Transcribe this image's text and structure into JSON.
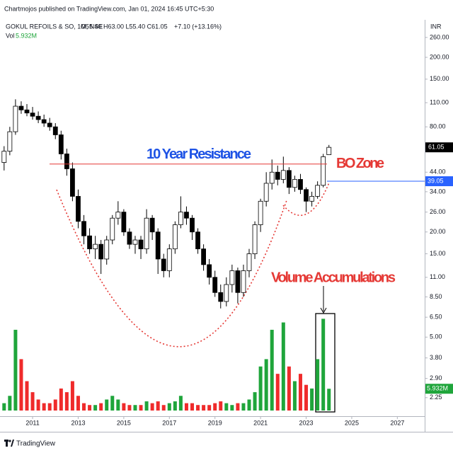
{
  "header": {
    "published": "Chartmojos published on TradingView.com, Jan 01, 2024 16:45 UTC+5:30",
    "symbol": "GOKUL REFOILS & SO, 1M, NSE",
    "ohlc": "O55.40 H63.00 L55.40 C61.05",
    "change": "+7.10 (+13.16%)",
    "volume_caption": "Vol",
    "volume": "5.932M",
    "currency": "INR"
  },
  "footer": {
    "brand": "TradingView"
  },
  "chart_data": {
    "type": "candlestick",
    "log_scale": true,
    "grid": false,
    "x": [
      2009.75,
      2010,
      2010.25,
      2010.5,
      2010.75,
      2011,
      2011.25,
      2011.5,
      2011.75,
      2012,
      2012.25,
      2012.5,
      2012.75,
      2013,
      2013.25,
      2013.5,
      2013.75,
      2014,
      2014.25,
      2014.5,
      2014.75,
      2015,
      2015.25,
      2015.5,
      2015.75,
      2016,
      2016.25,
      2016.5,
      2016.75,
      2017,
      2017.25,
      2017.5,
      2017.75,
      2018,
      2018.25,
      2018.5,
      2018.75,
      2019,
      2019.25,
      2019.5,
      2019.75,
      2020,
      2020.25,
      2020.5,
      2020.75,
      2021,
      2021.25,
      2021.5,
      2021.75,
      2022,
      2022.25,
      2022.5,
      2022.75,
      2023,
      2023.25,
      2023.5,
      2023.75,
      2024
    ],
    "open": [
      50,
      58,
      75,
      105,
      100,
      96,
      92,
      88,
      84,
      80,
      72,
      56,
      46,
      32,
      23,
      19,
      16,
      17,
      14,
      18,
      24,
      26,
      20,
      17,
      18,
      16,
      24,
      20,
      14,
      12,
      16,
      22,
      26,
      24,
      20,
      16,
      13,
      11,
      9,
      8,
      10,
      12,
      9,
      12,
      15,
      22,
      30,
      38,
      44,
      40,
      45,
      36,
      40,
      35,
      30,
      32,
      37,
      55.4
    ],
    "high": [
      62,
      80,
      115,
      112,
      108,
      104,
      98,
      94,
      90,
      84,
      76,
      60,
      50,
      35,
      25,
      21,
      19,
      18,
      19,
      25,
      30,
      27,
      21,
      19,
      19,
      27,
      25,
      21,
      15,
      17,
      23,
      32,
      28,
      25,
      21,
      17,
      14,
      12,
      10,
      11,
      13,
      12.5,
      13,
      16,
      23,
      31,
      44,
      52,
      48,
      54,
      47,
      42,
      43,
      36,
      34,
      39,
      56,
      63
    ],
    "low": [
      45,
      55,
      72,
      95,
      92,
      88,
      84,
      80,
      76,
      68,
      52,
      42,
      30,
      21,
      17,
      15,
      14,
      11.5,
      13,
      17,
      22,
      19,
      16,
      15,
      14,
      15,
      18,
      11.5,
      11,
      11,
      15,
      21,
      22,
      18,
      15,
      12,
      10,
      8.5,
      7.3,
      7.5,
      9,
      7.8,
      8.5,
      11,
      14,
      20,
      28,
      35,
      37,
      38,
      33,
      34,
      33,
      26,
      28,
      31,
      36,
      55.4
    ],
    "close": [
      58,
      75,
      105,
      100,
      96,
      92,
      88,
      84,
      80,
      72,
      56,
      46,
      32,
      23,
      19,
      16,
      17,
      14,
      18,
      24,
      26,
      20,
      17,
      18,
      16,
      24,
      20,
      14,
      12,
      16,
      22,
      26,
      24,
      20,
      16,
      13,
      11,
      9,
      8,
      10,
      12,
      9,
      12,
      15,
      22,
      30,
      38,
      44,
      40,
      45,
      36,
      40,
      35,
      30,
      32,
      37,
      53.95,
      61.05
    ],
    "volume": [
      2,
      4,
      22,
      14,
      8,
      5,
      3,
      2,
      2,
      3,
      6,
      5,
      8,
      4,
      2,
      1.5,
      1.5,
      2,
      3,
      4,
      3,
      2,
      1.5,
      1.5,
      1.5,
      2.5,
      2,
      2.5,
      1.5,
      2,
      2.5,
      4,
      2,
      2,
      1.5,
      1.5,
      1.5,
      2,
      2.5,
      2,
      1.5,
      2,
      2,
      3,
      5,
      12,
      14,
      22,
      10,
      24,
      12,
      8,
      10,
      7,
      6,
      14,
      25,
      5.932
    ],
    "volume_value_label": "5.932M",
    "vlim": [
      0,
      27
    ],
    "xlim": [
      2009.57,
      2028.2
    ],
    "xticks": [
      2011,
      2013,
      2015,
      2017,
      2019,
      2021,
      2023,
      2025,
      2027
    ],
    "ylim": [
      1.73,
      328
    ],
    "yticks": [
      {
        "value": 260,
        "label": "260.00"
      },
      {
        "value": 200,
        "label": "200.00"
      },
      {
        "value": 150,
        "label": "150.00"
      },
      {
        "value": 110,
        "label": "110.00"
      },
      {
        "value": 80,
        "label": "80.00"
      },
      {
        "value": 44,
        "label": "44.00"
      },
      {
        "value": 34,
        "label": "34.00"
      },
      {
        "value": 26,
        "label": "26.00"
      },
      {
        "value": 20,
        "label": "20.00"
      },
      {
        "value": 15,
        "label": "15.00"
      },
      {
        "value": 11,
        "label": "11.00"
      },
      {
        "value": 8.5,
        "label": "8.50"
      },
      {
        "value": 6.5,
        "label": "6.50"
      },
      {
        "value": 5,
        "label": "5.00"
      },
      {
        "value": 3.8,
        "label": "3.80"
      },
      {
        "value": 2.9,
        "label": "2.90"
      },
      2.25
    ],
    "resistance": 49,
    "resistance_label": "10 Year Resistance",
    "breakout_label": "BO Zone",
    "marker_price": 39.05,
    "volume_annotation": "Volume Accumulations",
    "candle_up_color": "#ffffff",
    "candle_down_color": "#000000",
    "volume_up_color": "#1fa53b",
    "volume_down_color": "#ef2b2b",
    "resistance_color": "#e53935",
    "marker_color": "#2962ff"
  }
}
